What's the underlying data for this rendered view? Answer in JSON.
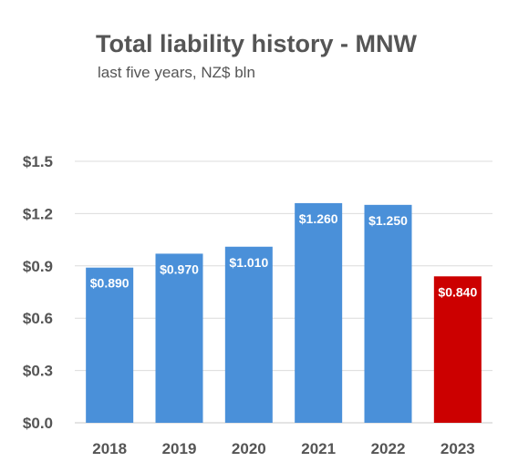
{
  "chart_data": {
    "type": "bar",
    "title": "Total liability history - MNW",
    "subtitle": "last five years, NZ$ bln",
    "categories": [
      "2018",
      "2019",
      "2020",
      "2021",
      "2022",
      "2023"
    ],
    "values": [
      0.89,
      0.97,
      1.01,
      1.26,
      1.25,
      0.84
    ],
    "data_labels": [
      "$0.890",
      "$0.970",
      "$1.010",
      "$1.260",
      "$1.250",
      "$0.840"
    ],
    "bar_colors": [
      "#4a90d9",
      "#4a90d9",
      "#4a90d9",
      "#4a90d9",
      "#4a90d9",
      "#cc0000"
    ],
    "y_ticks": [
      0,
      0.3,
      0.6,
      0.9,
      1.2,
      1.5
    ],
    "y_tick_labels": [
      "$0.0",
      "$0.3",
      "$0.6",
      "$0.9",
      "$1.2",
      "$1.5"
    ],
    "ylim": [
      0,
      1.5
    ],
    "xlabel": "",
    "ylabel": "",
    "grid": true,
    "legend": "none"
  }
}
